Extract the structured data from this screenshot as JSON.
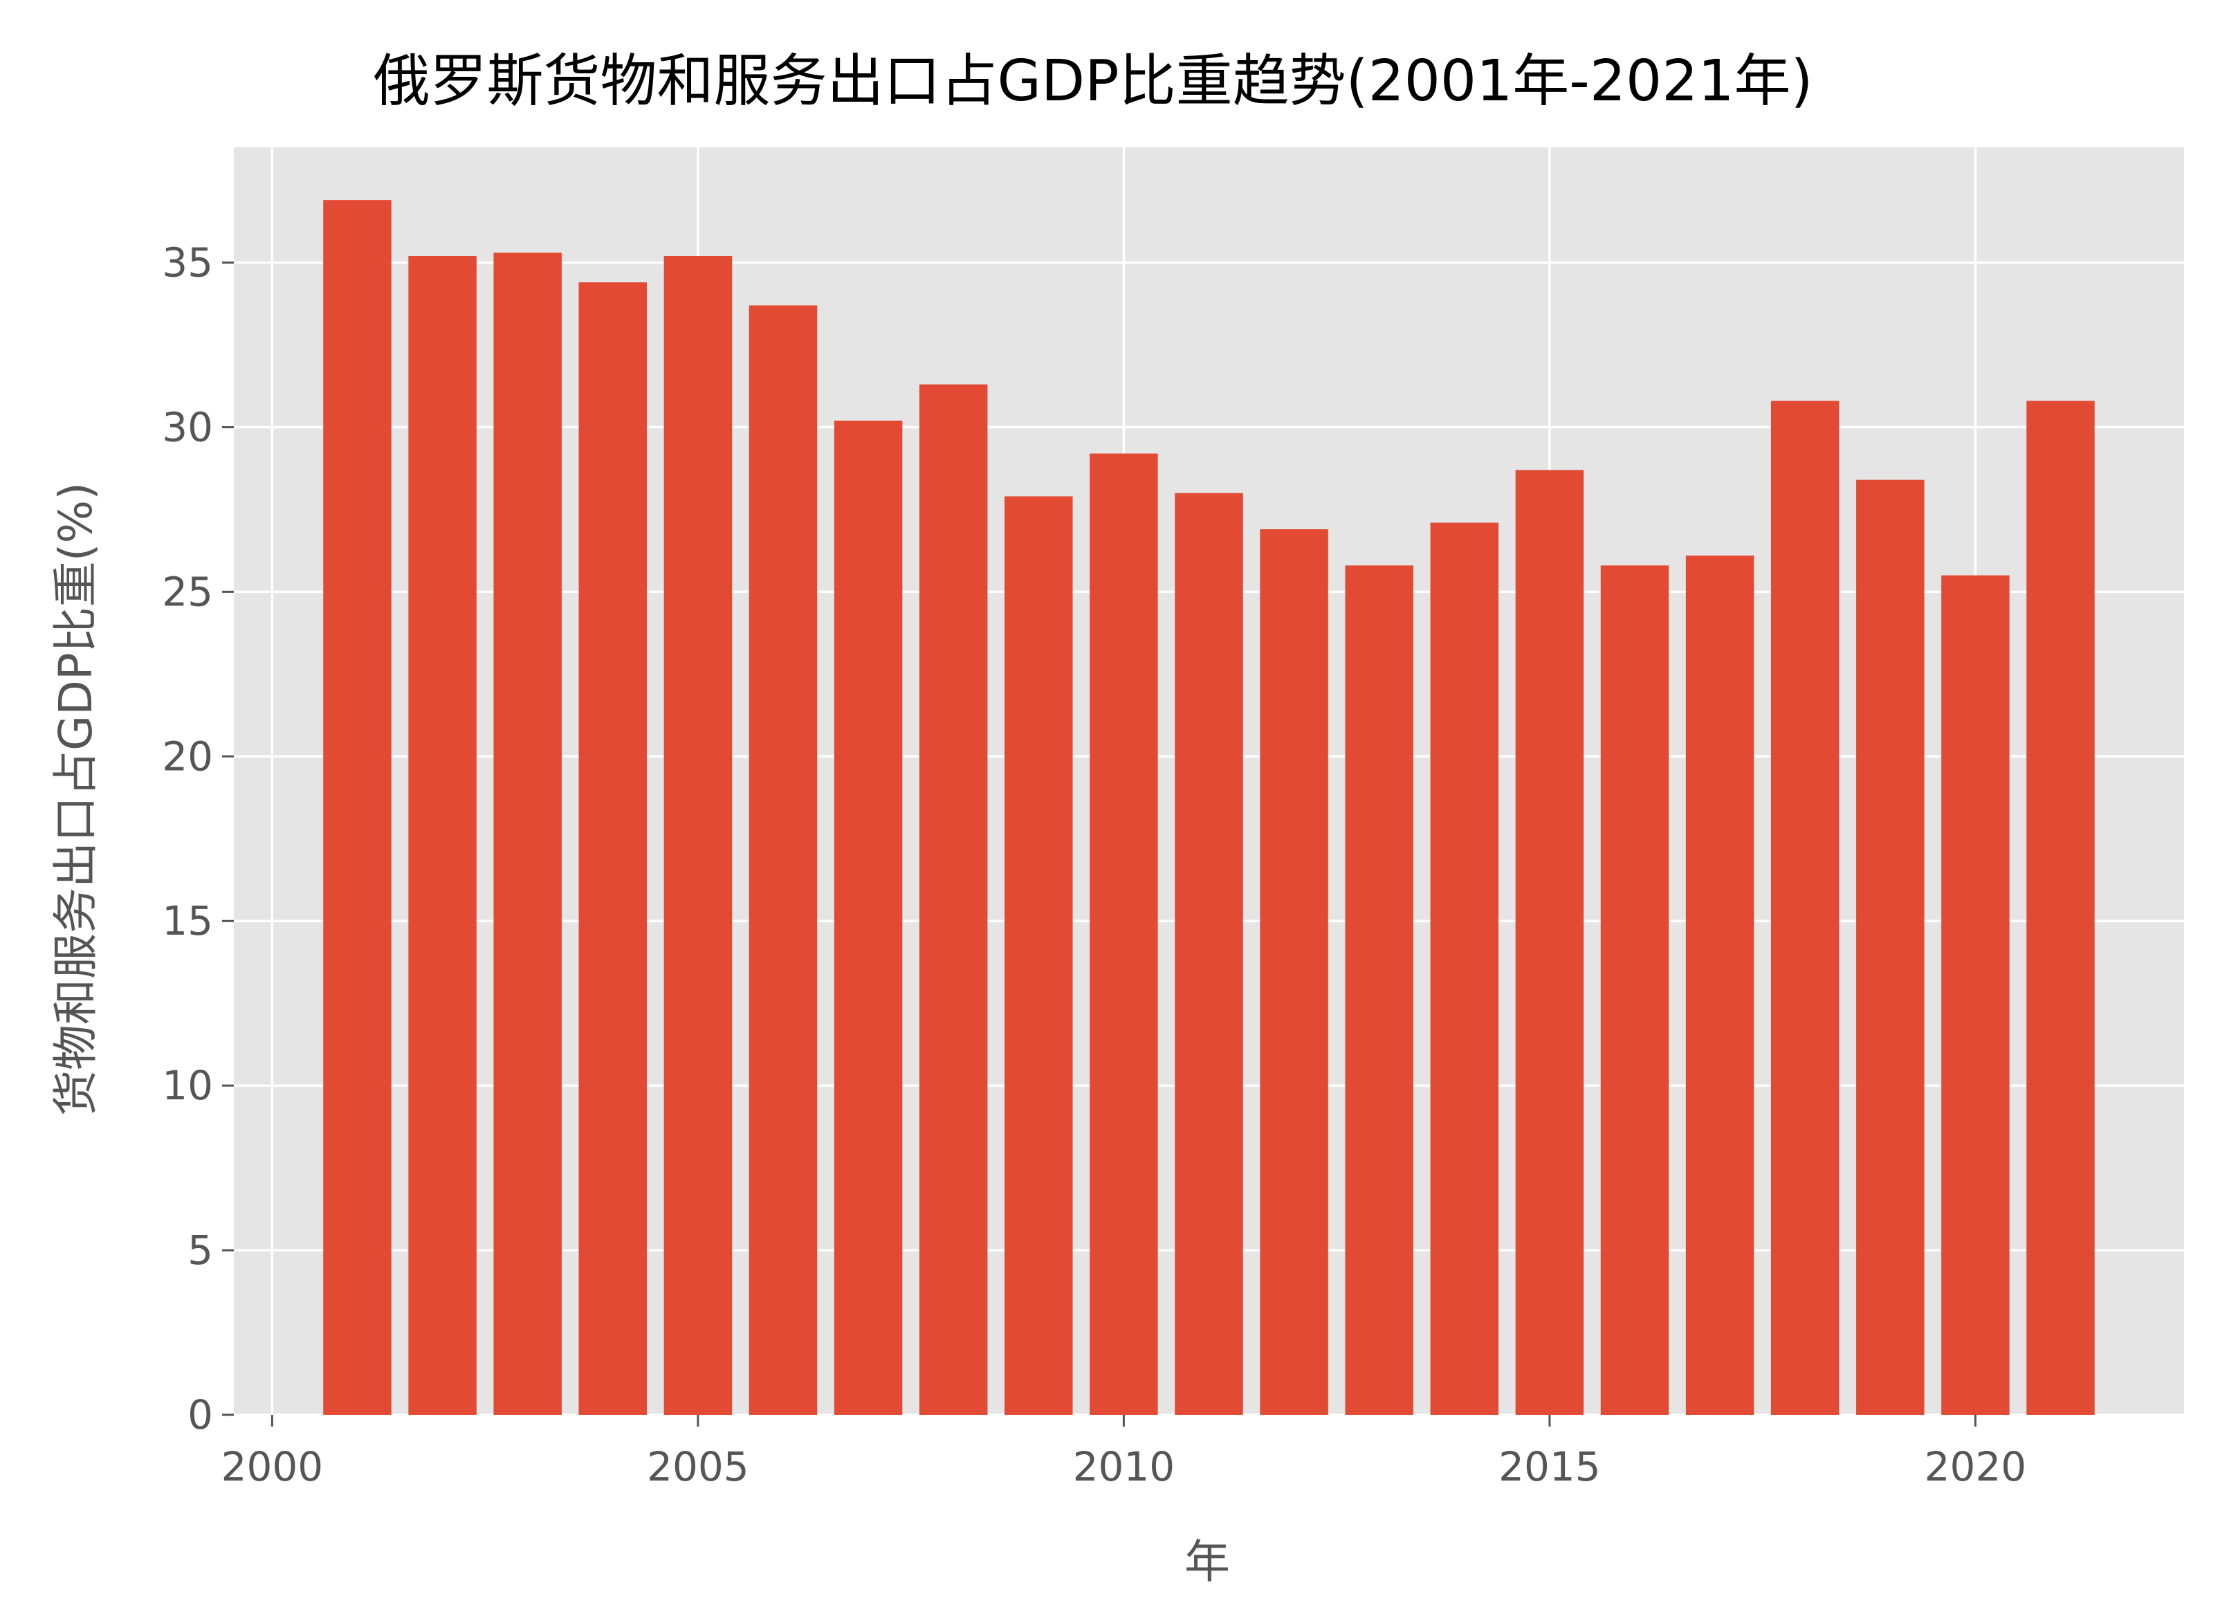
{
  "chart_data": {
    "type": "bar",
    "title": "俄罗斯货物和服务出口占GDP比重趋势(2001年-2021年)",
    "xlabel": "年",
    "ylabel": "货物和服务出口占GDP比重(%)",
    "x": [
      2001,
      2002,
      2003,
      2004,
      2005,
      2006,
      2007,
      2008,
      2009,
      2010,
      2011,
      2012,
      2013,
      2014,
      2015,
      2016,
      2017,
      2018,
      2019,
      2020,
      2021
    ],
    "values": [
      36.9,
      35.2,
      35.3,
      34.4,
      35.2,
      33.7,
      30.2,
      31.3,
      27.9,
      29.2,
      28.0,
      26.9,
      25.8,
      27.1,
      28.7,
      25.8,
      26.1,
      30.8,
      28.4,
      25.5,
      30.8
    ],
    "xlim": [
      1999.55,
      2022.45
    ],
    "ylim": [
      0,
      38.5
    ],
    "xticks": [
      2000,
      2005,
      2010,
      2015,
      2020
    ],
    "yticks": [
      0,
      5,
      10,
      15,
      20,
      25,
      30,
      35
    ],
    "grid": true,
    "colors": {
      "bar": "#E24A33",
      "plot_background": "#E5E5E5",
      "grid": "#FFFFFF",
      "tick_text": "#555555",
      "title": "#000000"
    }
  }
}
